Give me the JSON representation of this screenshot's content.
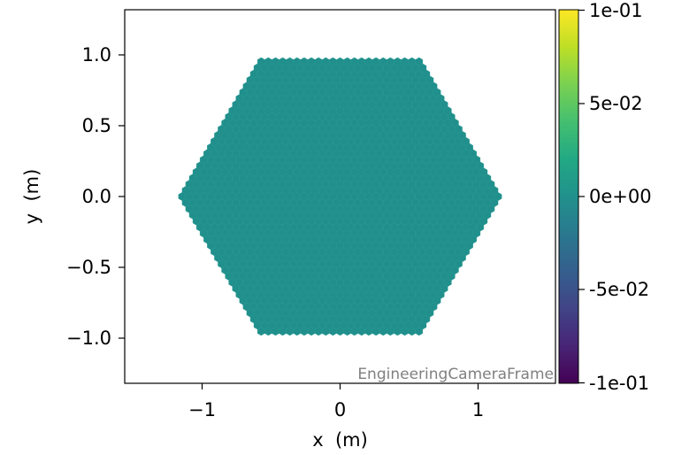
{
  "chart_data": {
    "type": "heatmap",
    "xlabel": "x  (m)",
    "ylabel": "y  (m)",
    "xlim": [
      -1.5,
      1.5
    ],
    "ylim": [
      -1.32,
      1.32
    ],
    "x_ticks": [
      -1,
      0,
      1
    ],
    "x_tick_labels": [
      "−1",
      "0",
      "1"
    ],
    "y_ticks": [
      -1.0,
      -0.5,
      0.0,
      0.5,
      1.0
    ],
    "y_tick_labels": [
      "−1.0",
      "−0.5",
      "0.0",
      "0.5",
      "1.0"
    ],
    "camera": {
      "shape": "hexagon",
      "pixel_shape": "hexagon",
      "radius_m": 1.1,
      "pixel_pitch_m": 0.05,
      "value": 0.0
    },
    "colorbar": {
      "colormap": "viridis",
      "range": [
        -0.1,
        0.1
      ],
      "ticks": [
        0.1,
        0.05,
        0.0,
        -0.05,
        -0.1
      ],
      "tick_labels": [
        "1e-01",
        "5e-02",
        "0e+00",
        "-5e-02",
        "-1e-01"
      ]
    },
    "annotation": "EngineeringCameraFrame",
    "colors": {
      "pixel_fill": "#21908d",
      "pixel_edge": "#2a9c93"
    }
  }
}
